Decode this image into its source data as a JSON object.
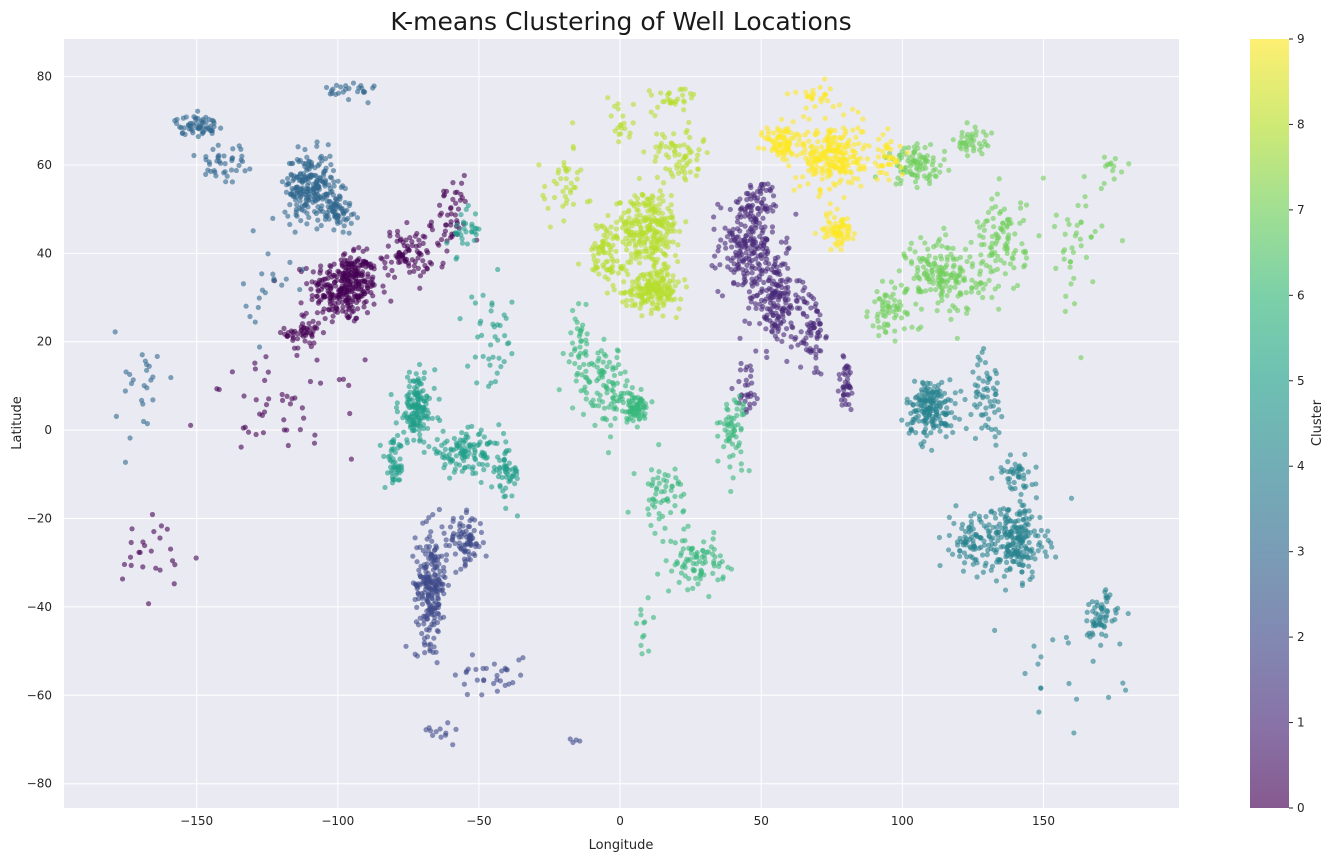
{
  "chart_data": {
    "type": "scatter",
    "title": "K-means Clustering of Well Locations",
    "xlabel": "Longitude",
    "ylabel": "Latitude",
    "xlim": [
      -197,
      198
    ],
    "ylim": [
      -85.5,
      88.5
    ],
    "xticks": [
      -150,
      -100,
      -50,
      0,
      50,
      100,
      150
    ],
    "yticks": [
      -80,
      -60,
      -40,
      -20,
      0,
      20,
      40,
      60,
      80
    ],
    "grid": true,
    "background": "#eaeaf2",
    "colormap": "viridis",
    "marker_alpha": 0.6,
    "colorbar": {
      "label": "Cluster",
      "range": [
        0,
        9
      ],
      "ticks": [
        0,
        1,
        2,
        3,
        4,
        5,
        6,
        7,
        8,
        9
      ]
    },
    "clusters": [
      {
        "cluster": 0,
        "centers": [
          [
            -98,
            32,
            11,
            7,
            260
          ],
          [
            -112,
            22,
            6,
            4,
            50
          ],
          [
            -75,
            40,
            8,
            5,
            80
          ],
          [
            -60,
            48,
            6,
            8,
            50
          ],
          [
            -120,
            5,
            25,
            10,
            45
          ],
          [
            -165,
            -30,
            14,
            10,
            25
          ],
          [
            -93,
            36,
            5,
            4,
            60
          ]
        ]
      },
      {
        "cluster": 1,
        "centers": [
          [
            45,
            42,
            9,
            10,
            200
          ],
          [
            55,
            30,
            8,
            10,
            180
          ],
          [
            68,
            22,
            4,
            9,
            70
          ],
          [
            80,
            10,
            3,
            6,
            40
          ],
          [
            45,
            10,
            4,
            6,
            30
          ],
          [
            50,
            52,
            6,
            4,
            40
          ]
        ]
      },
      {
        "cluster": 2,
        "centers": [
          [
            -67,
            -35,
            5,
            12,
            220
          ],
          [
            -55,
            -25,
            6,
            5,
            80
          ],
          [
            -45,
            -55,
            12,
            5,
            30
          ],
          [
            -65,
            -68,
            5,
            2,
            12
          ],
          [
            -15,
            -70,
            2,
            2,
            4
          ]
        ]
      },
      {
        "cluster": 3,
        "centers": [
          [
            -110,
            55,
            8,
            7,
            220
          ],
          [
            -100,
            50,
            5,
            4,
            70
          ],
          [
            -150,
            69,
            7,
            2,
            60
          ],
          [
            -140,
            60,
            10,
            6,
            40
          ],
          [
            -95,
            77,
            8,
            2,
            25
          ],
          [
            -170,
            10,
            8,
            12,
            25
          ],
          [
            -125,
            30,
            8,
            10,
            20
          ]
        ]
      },
      {
        "cluster": 4,
        "centers": [
          [
            110,
            5,
            8,
            6,
            180
          ],
          [
            130,
            8,
            5,
            8,
            60
          ],
          [
            140,
            -25,
            10,
            8,
            220
          ],
          [
            125,
            -25,
            7,
            6,
            80
          ],
          [
            170,
            -42,
            6,
            5,
            60
          ],
          [
            140,
            -10,
            6,
            4,
            40
          ],
          [
            155,
            -55,
            20,
            10,
            20
          ]
        ]
      },
      {
        "cluster": 5,
        "centers": [
          [
            -72,
            5,
            6,
            7,
            150
          ],
          [
            -55,
            -5,
            12,
            4,
            120
          ],
          [
            -40,
            -10,
            4,
            5,
            50
          ],
          [
            -80,
            -8,
            3,
            5,
            50
          ],
          [
            -45,
            20,
            8,
            10,
            40
          ],
          [
            -55,
            45,
            5,
            5,
            30
          ]
        ]
      },
      {
        "cluster": 6,
        "centers": [
          [
            -5,
            10,
            8,
            8,
            90
          ],
          [
            5,
            5,
            5,
            3,
            80
          ],
          [
            28,
            -30,
            8,
            5,
            80
          ],
          [
            15,
            -15,
            8,
            8,
            60
          ],
          [
            40,
            0,
            4,
            8,
            60
          ],
          [
            -15,
            20,
            5,
            8,
            40
          ],
          [
            8,
            -45,
            4,
            8,
            12
          ]
        ]
      },
      {
        "cluster": 7,
        "centers": [
          [
            115,
            35,
            12,
            8,
            180
          ],
          [
            135,
            42,
            8,
            10,
            100
          ],
          [
            105,
            60,
            10,
            4,
            90
          ],
          [
            125,
            65,
            6,
            3,
            40
          ],
          [
            95,
            27,
            6,
            5,
            60
          ],
          [
            160,
            40,
            10,
            15,
            40
          ],
          [
            175,
            60,
            5,
            3,
            12
          ]
        ]
      },
      {
        "cluster": 8,
        "centers": [
          [
            10,
            45,
            10,
            8,
            260
          ],
          [
            12,
            32,
            9,
            4,
            180
          ],
          [
            -5,
            40,
            6,
            6,
            80
          ],
          [
            20,
            62,
            8,
            6,
            70
          ],
          [
            -20,
            55,
            8,
            8,
            40
          ],
          [
            20,
            75,
            8,
            3,
            30
          ],
          [
            0,
            70,
            5,
            5,
            20
          ]
        ]
      },
      {
        "cluster": 9,
        "centers": [
          [
            75,
            62,
            10,
            7,
            240
          ],
          [
            58,
            65,
            6,
            4,
            80
          ],
          [
            77,
            45,
            5,
            4,
            70
          ],
          [
            95,
            62,
            5,
            5,
            40
          ],
          [
            70,
            76,
            8,
            3,
            25
          ]
        ]
      }
    ]
  }
}
